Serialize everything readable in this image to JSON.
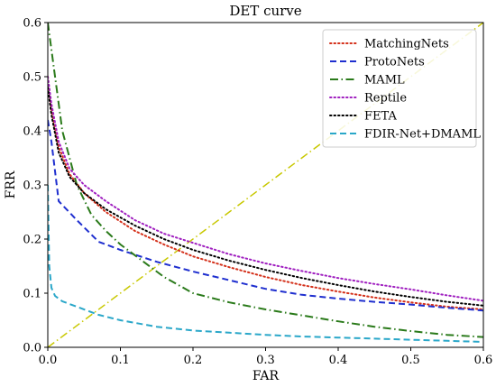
{
  "chart_data": {
    "type": "line",
    "title": "DET curve",
    "xlabel": "FAR",
    "ylabel": "FRR",
    "xlim": [
      0,
      0.6
    ],
    "ylim": [
      0,
      0.6
    ],
    "xticks": [
      0.0,
      0.1,
      0.2,
      0.3,
      0.4,
      0.5,
      0.6
    ],
    "yticks": [
      0.0,
      0.1,
      0.2,
      0.3,
      0.4,
      0.5,
      0.6
    ],
    "xtick_labels": [
      "0.0",
      "0.1",
      "0.2",
      "0.3",
      "0.4",
      "0.5",
      "0.6"
    ],
    "ytick_labels": [
      "0.0",
      "0.1",
      "0.2",
      "0.3",
      "0.4",
      "0.5",
      "0.6"
    ],
    "grid": false,
    "legend_position": "top-right",
    "series": [
      {
        "name": "MatchingNets",
        "color": "#d4301a",
        "dash": "dotted",
        "points": [
          [
            0.0,
            0.5
          ],
          [
            0.005,
            0.44
          ],
          [
            0.015,
            0.37
          ],
          [
            0.03,
            0.32
          ],
          [
            0.05,
            0.285
          ],
          [
            0.08,
            0.25
          ],
          [
            0.12,
            0.215
          ],
          [
            0.16,
            0.19
          ],
          [
            0.2,
            0.168
          ],
          [
            0.25,
            0.148
          ],
          [
            0.3,
            0.13
          ],
          [
            0.35,
            0.115
          ],
          [
            0.4,
            0.103
          ],
          [
            0.45,
            0.092
          ],
          [
            0.5,
            0.083
          ],
          [
            0.55,
            0.075
          ],
          [
            0.6,
            0.07
          ]
        ]
      },
      {
        "name": "ProtoNets",
        "color": "#1f2fcf",
        "dash": "dashed",
        "points": [
          [
            0.0,
            0.42
          ],
          [
            0.005,
            0.38
          ],
          [
            0.015,
            0.27
          ],
          [
            0.04,
            0.235
          ],
          [
            0.07,
            0.195
          ],
          [
            0.1,
            0.18
          ],
          [
            0.15,
            0.158
          ],
          [
            0.2,
            0.14
          ],
          [
            0.25,
            0.124
          ],
          [
            0.3,
            0.108
          ],
          [
            0.35,
            0.097
          ],
          [
            0.4,
            0.09
          ],
          [
            0.45,
            0.084
          ],
          [
            0.5,
            0.079
          ],
          [
            0.55,
            0.073
          ],
          [
            0.6,
            0.068
          ]
        ]
      },
      {
        "name": "MAML",
        "color": "#2a7a1a",
        "dash": "dashdot",
        "points": [
          [
            0.0,
            0.6
          ],
          [
            0.005,
            0.55
          ],
          [
            0.01,
            0.5
          ],
          [
            0.02,
            0.4
          ],
          [
            0.04,
            0.3
          ],
          [
            0.06,
            0.245
          ],
          [
            0.08,
            0.215
          ],
          [
            0.1,
            0.19
          ],
          [
            0.13,
            0.16
          ],
          [
            0.16,
            0.13
          ],
          [
            0.2,
            0.1
          ],
          [
            0.25,
            0.083
          ],
          [
            0.3,
            0.07
          ],
          [
            0.35,
            0.059
          ],
          [
            0.4,
            0.048
          ],
          [
            0.45,
            0.038
          ],
          [
            0.5,
            0.03
          ],
          [
            0.55,
            0.023
          ],
          [
            0.6,
            0.019
          ]
        ]
      },
      {
        "name": "Reptile",
        "color": "#a020c0",
        "dash": "dotted",
        "points": [
          [
            0.0,
            0.5
          ],
          [
            0.005,
            0.45
          ],
          [
            0.015,
            0.38
          ],
          [
            0.03,
            0.33
          ],
          [
            0.05,
            0.3
          ],
          [
            0.08,
            0.27
          ],
          [
            0.12,
            0.235
          ],
          [
            0.16,
            0.21
          ],
          [
            0.2,
            0.193
          ],
          [
            0.25,
            0.172
          ],
          [
            0.3,
            0.155
          ],
          [
            0.35,
            0.141
          ],
          [
            0.4,
            0.128
          ],
          [
            0.45,
            0.117
          ],
          [
            0.5,
            0.107
          ],
          [
            0.55,
            0.096
          ],
          [
            0.6,
            0.086
          ]
        ]
      },
      {
        "name": "FETA",
        "color": "#000000",
        "dash": "dotted",
        "points": [
          [
            0.0,
            0.48
          ],
          [
            0.005,
            0.43
          ],
          [
            0.015,
            0.36
          ],
          [
            0.03,
            0.315
          ],
          [
            0.05,
            0.285
          ],
          [
            0.08,
            0.255
          ],
          [
            0.12,
            0.225
          ],
          [
            0.16,
            0.2
          ],
          [
            0.2,
            0.18
          ],
          [
            0.25,
            0.16
          ],
          [
            0.3,
            0.143
          ],
          [
            0.35,
            0.128
          ],
          [
            0.4,
            0.115
          ],
          [
            0.45,
            0.103
          ],
          [
            0.5,
            0.093
          ],
          [
            0.55,
            0.084
          ],
          [
            0.6,
            0.077
          ]
        ]
      },
      {
        "name": "FDIR-Net+DMAML",
        "color": "#2aa7c9",
        "dash": "dashed",
        "points": [
          [
            0.0,
            0.3
          ],
          [
            0.002,
            0.15
          ],
          [
            0.005,
            0.11
          ],
          [
            0.01,
            0.095
          ],
          [
            0.02,
            0.085
          ],
          [
            0.04,
            0.075
          ],
          [
            0.07,
            0.06
          ],
          [
            0.1,
            0.05
          ],
          [
            0.15,
            0.038
          ],
          [
            0.2,
            0.031
          ],
          [
            0.25,
            0.027
          ],
          [
            0.3,
            0.023
          ],
          [
            0.35,
            0.02
          ],
          [
            0.4,
            0.018
          ],
          [
            0.45,
            0.016
          ],
          [
            0.5,
            0.014
          ],
          [
            0.55,
            0.012
          ],
          [
            0.6,
            0.01
          ]
        ]
      },
      {
        "name": "",
        "color": "#c8c800",
        "dash": "dashdot",
        "legend": false,
        "points": [
          [
            0.0,
            0.0
          ],
          [
            0.6,
            0.6
          ]
        ]
      }
    ]
  }
}
